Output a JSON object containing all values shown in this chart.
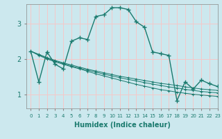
{
  "xlabel": "Humidex (Indice chaleur)",
  "bg_color": "#cce8ee",
  "grid_color": "#f5c8c8",
  "line_color": "#1a7a6e",
  "xlim": [
    -0.5,
    23
  ],
  "ylim": [
    0.6,
    3.55
  ],
  "yticks": [
    1,
    2,
    3
  ],
  "xticks": [
    0,
    1,
    2,
    3,
    4,
    5,
    6,
    7,
    8,
    9,
    10,
    11,
    12,
    13,
    14,
    15,
    16,
    17,
    18,
    19,
    20,
    21,
    22,
    23
  ],
  "series": [
    [
      2.22,
      1.35,
      2.2,
      1.85,
      1.72,
      2.5,
      2.6,
      2.55,
      3.2,
      3.25,
      3.45,
      3.45,
      3.4,
      3.05,
      2.9,
      2.2,
      2.15,
      2.1,
      0.82,
      1.35,
      1.15,
      1.4,
      1.3,
      1.22
    ],
    [
      2.22,
      2.1,
      2.0,
      1.92,
      1.85,
      1.78,
      1.72,
      1.65,
      1.58,
      1.52,
      1.46,
      1.4,
      1.34,
      1.28,
      1.23,
      1.18,
      1.13,
      1.1,
      1.06,
      1.03,
      1.0,
      0.98,
      0.96,
      0.94
    ],
    [
      2.22,
      2.12,
      2.02,
      1.94,
      1.87,
      1.8,
      1.74,
      1.68,
      1.63,
      1.57,
      1.52,
      1.47,
      1.42,
      1.38,
      1.33,
      1.29,
      1.25,
      1.21,
      1.18,
      1.14,
      1.11,
      1.08,
      1.06,
      1.04
    ],
    [
      2.22,
      2.13,
      2.04,
      1.96,
      1.89,
      1.83,
      1.77,
      1.71,
      1.66,
      1.61,
      1.56,
      1.51,
      1.47,
      1.43,
      1.39,
      1.35,
      1.31,
      1.28,
      1.25,
      1.21,
      1.18,
      1.15,
      1.13,
      1.11
    ]
  ]
}
